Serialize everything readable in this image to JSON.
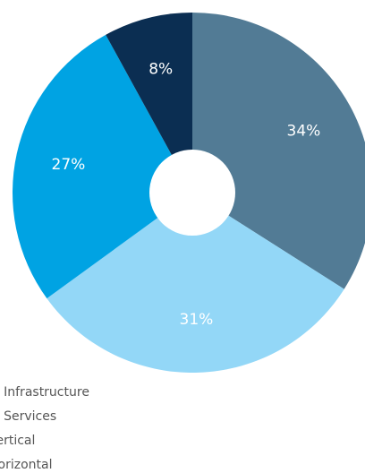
{
  "chart_data": {
    "type": "pie",
    "style": "donut",
    "start_angle_deg": 0,
    "direction": "clockwise",
    "legend_position": "bottom-left",
    "slices": [
      {
        "label": "IT Infrastructure",
        "value": 34,
        "display": "34%",
        "color": "#527b95"
      },
      {
        "label": "IT Services",
        "value": 31,
        "display": "31%",
        "color": "#93d7f7"
      },
      {
        "label": "Vertical",
        "value": 27,
        "display": "27%",
        "color": "#00a3e3"
      },
      {
        "label": "Horizontal",
        "value": 8,
        "display": "8%",
        "color": "#0b2e52"
      }
    ],
    "legend": {
      "items": [
        {
          "label": "IT Infrastructure",
          "display": "IT Infrastructure",
          "color": "#527b95"
        },
        {
          "label": "IT Services",
          "display": "IT Services",
          "color": "#93d7f7"
        },
        {
          "label": "Vertical",
          "display": "Vertical",
          "color": "#00a3e3"
        },
        {
          "label": "Horizontal",
          "display": "Horizontal",
          "color": "#0b2e52"
        }
      ]
    }
  }
}
